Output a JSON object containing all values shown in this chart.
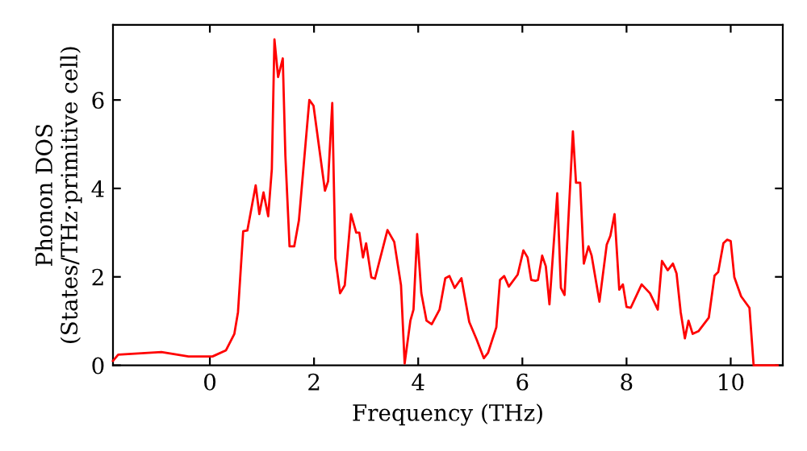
{
  "chart_data": {
    "type": "line",
    "xlabel": "Frequency (THz)",
    "ylabel": "Phonon DOS\n(States/THz·primitive cell)",
    "xlim": [
      -1.86,
      11.0
    ],
    "ylim": [
      0,
      7.7
    ],
    "xticks": [
      0,
      2,
      4,
      6,
      8,
      10
    ],
    "yticks": [
      0,
      2,
      4,
      6
    ],
    "grid": false,
    "legend": false,
    "marker": "none",
    "line_style": "solid",
    "series": [
      {
        "color": "#ff0000",
        "x": [
          -1.86,
          -1.76,
          -0.93,
          -0.41,
          0.05,
          0.31,
          0.47,
          0.54,
          0.64,
          0.72,
          0.88,
          0.95,
          1.03,
          1.12,
          1.19,
          1.24,
          1.31,
          1.4,
          1.45,
          1.53,
          1.62,
          1.71,
          1.91,
          1.99,
          2.21,
          2.27,
          2.35,
          2.41,
          2.5,
          2.59,
          2.71,
          2.81,
          2.87,
          2.94,
          3.0,
          3.1,
          3.17,
          3.41,
          3.54,
          3.67,
          3.74,
          3.85,
          3.91,
          3.98,
          4.06,
          4.16,
          4.26,
          4.41,
          4.52,
          4.6,
          4.7,
          4.83,
          4.98,
          5.12,
          5.26,
          5.34,
          5.5,
          5.57,
          5.65,
          5.74,
          5.91,
          6.02,
          6.1,
          6.17,
          6.25,
          6.3,
          6.38,
          6.45,
          6.52,
          6.67,
          6.74,
          6.81,
          6.97,
          7.03,
          7.11,
          7.18,
          7.27,
          7.33,
          7.48,
          7.62,
          7.69,
          7.77,
          7.86,
          7.93,
          8.0,
          8.08,
          8.29,
          8.45,
          8.6,
          8.68,
          8.79,
          8.89,
          8.96,
          9.04,
          9.12,
          9.19,
          9.27,
          9.38,
          9.58,
          9.69,
          9.76,
          9.86,
          9.93,
          10.0,
          10.07,
          10.2,
          10.36,
          10.44,
          10.9
        ],
        "values": [
          0.1,
          0.24,
          0.3,
          0.2,
          0.2,
          0.34,
          0.71,
          1.2,
          3.03,
          3.05,
          4.07,
          3.42,
          3.91,
          3.37,
          4.44,
          7.37,
          6.52,
          6.94,
          4.74,
          2.69,
          2.69,
          3.28,
          6.0,
          5.87,
          3.95,
          4.16,
          5.93,
          2.42,
          1.63,
          1.81,
          3.42,
          3.0,
          3.0,
          2.44,
          2.76,
          1.99,
          1.96,
          3.06,
          2.79,
          1.81,
          0.04,
          1.01,
          1.26,
          2.97,
          1.63,
          1.01,
          0.93,
          1.26,
          1.97,
          2.02,
          1.75,
          1.97,
          0.98,
          0.59,
          0.16,
          0.28,
          0.86,
          1.93,
          2.02,
          1.78,
          2.05,
          2.6,
          2.44,
          1.93,
          1.91,
          1.93,
          2.48,
          2.24,
          1.38,
          3.89,
          1.75,
          1.59,
          5.29,
          4.13,
          4.13,
          2.3,
          2.69,
          2.48,
          1.44,
          2.73,
          2.93,
          3.42,
          1.71,
          1.83,
          1.32,
          1.3,
          1.83,
          1.63,
          1.26,
          2.36,
          2.15,
          2.3,
          2.08,
          1.2,
          0.61,
          1.01,
          0.71,
          0.77,
          1.08,
          2.03,
          2.11,
          2.76,
          2.84,
          2.81,
          1.99,
          1.56,
          1.3,
          0,
          0
        ]
      }
    ]
  }
}
